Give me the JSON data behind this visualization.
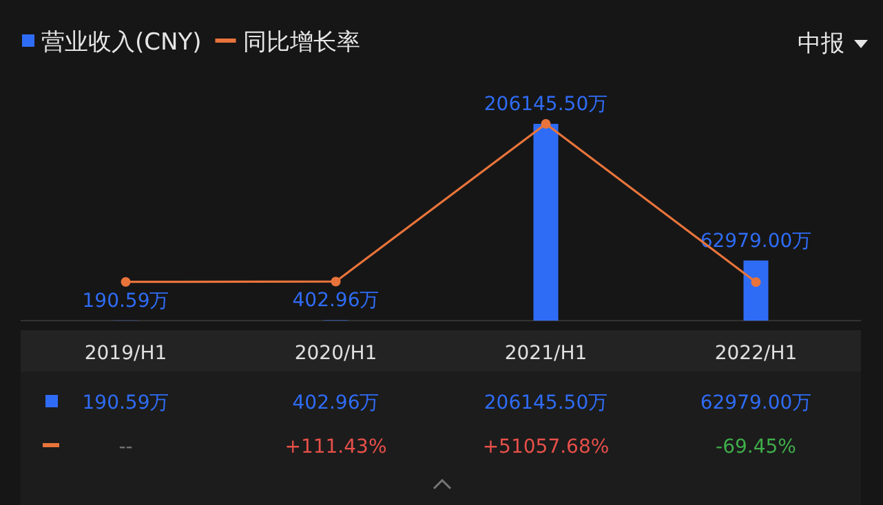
{
  "chart_data": {
    "type": "bar",
    "categories": [
      "2019/H1",
      "2020/H1",
      "2021/H1",
      "2022/H1"
    ],
    "series": [
      {
        "name": "营业收入(CNY)",
        "color": "#2f6cf5",
        "values": [
          190.59,
          402.96,
          206145.5,
          62979.0
        ],
        "value_labels": [
          "190.59万",
          "402.96万",
          "206145.50万",
          "62979.00万"
        ]
      },
      {
        "name": "同比增长率",
        "type": "line",
        "axis": "y2",
        "color": "#e8743b",
        "marker": "circle",
        "values": [
          0,
          111.43,
          51057.68,
          -69.45
        ],
        "value_labels": [
          "--",
          "+111.43%",
          "+51057.68%",
          "-69.45%"
        ]
      }
    ],
    "tick_labels": "x",
    "grid": false,
    "legend": "top left",
    "annotations": [
      "中报"
    ]
  }
}
